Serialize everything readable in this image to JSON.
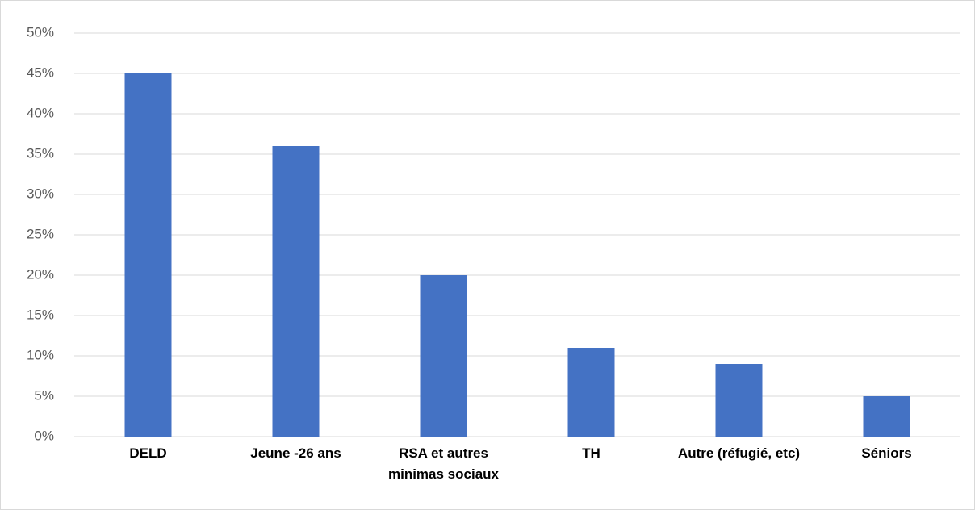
{
  "chart_data": {
    "type": "bar",
    "categories": [
      "DELD",
      "Jeune -26 ans",
      "RSA et autres minimas sociaux",
      "TH",
      "Autre (réfugié, etc)",
      "Séniors"
    ],
    "values": [
      45,
      36,
      20,
      11,
      9,
      5
    ],
    "color": "#4472c4",
    "ylim": [
      0,
      50
    ],
    "yticks": [
      {
        "value": 0,
        "label": "0%"
      },
      {
        "value": 5,
        "label": "5%"
      },
      {
        "value": 10,
        "label": "10%"
      },
      {
        "value": 15,
        "label": "15%"
      },
      {
        "value": 20,
        "label": "20%"
      },
      {
        "value": 25,
        "label": "25%"
      },
      {
        "value": 30,
        "label": "30%"
      },
      {
        "value": 35,
        "label": "35%"
      },
      {
        "value": 40,
        "label": "40%"
      },
      {
        "value": 45,
        "label": "45%"
      },
      {
        "value": 50,
        "label": "50%"
      }
    ],
    "grid": true
  }
}
